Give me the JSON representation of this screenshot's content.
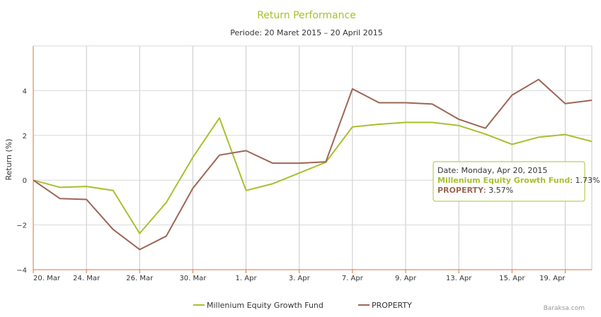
{
  "chart_data": {
    "type": "line",
    "title": "Return Performance",
    "subtitle": "Periode: 20 Maret 2015 – 20 April 2015",
    "ylabel": "Return (%)",
    "ylim": [
      -4,
      6
    ],
    "yticks": [
      "−4",
      "−2",
      "0",
      "2",
      "4"
    ],
    "ytick_values": [
      -4,
      -2,
      0,
      2,
      4
    ],
    "x": [
      0,
      1,
      2,
      3,
      4,
      5,
      6,
      7,
      8,
      9,
      10,
      11,
      12,
      13,
      14,
      15,
      16,
      17,
      18,
      19,
      20,
      21
    ],
    "xlim": [
      0,
      21
    ],
    "xtick_labels": [
      "20. Mar",
      "24. Mar",
      "26. Mar",
      "30. Mar",
      "1. Apr",
      "3. Apr",
      "7. Apr",
      "9. Apr",
      "13. Apr",
      "15. Apr",
      "19. Apr"
    ],
    "xtick_positions": [
      0,
      2,
      4,
      6,
      8,
      10,
      12,
      14,
      16,
      18,
      20
    ],
    "grid": true,
    "legend_position": "bottom",
    "series": [
      {
        "name": "Millenium Equity Growth Fund",
        "color": "#a8c02c",
        "values": [
          0,
          -0.32,
          -0.28,
          -0.46,
          -2.38,
          -1.0,
          1.02,
          2.78,
          -0.46,
          -0.16,
          0.32,
          0.8,
          2.38,
          2.5,
          2.58,
          2.58,
          2.44,
          2.06,
          1.6,
          1.92,
          2.04,
          1.73
        ]
      },
      {
        "name": "PROPERTY",
        "color": "#9e6554",
        "values": [
          0,
          -0.82,
          -0.86,
          -2.2,
          -3.1,
          -2.5,
          -0.36,
          1.12,
          1.32,
          0.76,
          0.76,
          0.82,
          4.08,
          3.46,
          3.46,
          3.4,
          2.72,
          2.32,
          3.8,
          4.5,
          3.42,
          3.57
        ]
      }
    ],
    "tooltip": {
      "date_label": "Date: Monday, Apr 20, 2015",
      "series1_name": "Millenium Equity Growth Fund",
      "series1_value": ": 1.73%",
      "series2_name": "PROPERTY",
      "series2_value": ": 3.57%"
    },
    "credit": "Baraksa.com"
  }
}
